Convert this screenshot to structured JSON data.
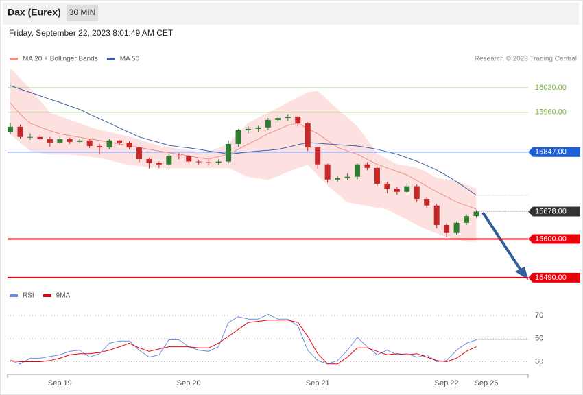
{
  "chart_data": {
    "type": "candlestick",
    "title": "Dax (Eurex)",
    "timeframe": "30 MIN",
    "subtitle": "Friday, September 22, 2023 8:01:49 AM CET",
    "credit": "Research © 2023 Trading Central",
    "categories": [
      null,
      null,
      null,
      null,
      null,
      "Sep 19",
      null,
      null,
      null,
      null,
      null,
      null,
      null,
      null,
      null,
      null,
      null,
      null,
      "Sep 20",
      null,
      null,
      null,
      null,
      null,
      null,
      null,
      null,
      null,
      null,
      null,
      null,
      "Sep 21",
      null,
      null,
      null,
      null,
      null,
      null,
      null,
      null,
      null,
      null,
      null,
      null,
      "Sep 22",
      null,
      null,
      null,
      "Sep 26",
      null,
      null,
      null,
      null
    ],
    "open": [
      15905,
      15919,
      15890,
      15890,
      15884,
      15874,
      15884,
      15876,
      15880,
      15864,
      15860,
      15880,
      15874,
      15860,
      15827,
      15816,
      15812,
      15837,
      15835,
      15820,
      15818,
      15816,
      15820,
      15870,
      15909,
      15913,
      15917,
      15938,
      15944,
      15948,
      15929,
      15860,
      15812,
      15769,
      15773,
      15777,
      15812,
      15802,
      15757,
      15743,
      15734,
      15750,
      15714,
      15695,
      15640,
      15617,
      15646,
      15665,
      null,
      null,
      null,
      null,
      null
    ],
    "high": [
      15930,
      15925,
      15900,
      15897,
      15890,
      15890,
      15888,
      15886,
      15884,
      15870,
      15884,
      15882,
      15878,
      15862,
      15830,
      15820,
      15842,
      15845,
      15838,
      15825,
      15822,
      15826,
      15880,
      15912,
      15920,
      15922,
      15944,
      15952,
      15955,
      15950,
      15932,
      15862,
      15814,
      15780,
      15786,
      15815,
      15818,
      15806,
      15762,
      15748,
      15758,
      15755,
      15718,
      15700,
      15645,
      15650,
      15670,
      15682,
      null,
      null,
      null,
      null,
      null
    ],
    "low": [
      15898,
      15885,
      15882,
      15878,
      15862,
      15870,
      15870,
      15872,
      15858,
      15840,
      15855,
      15866,
      15855,
      15818,
      15800,
      15802,
      15808,
      15826,
      15815,
      15812,
      15810,
      15812,
      15815,
      15862,
      15900,
      15905,
      15910,
      15930,
      15936,
      15920,
      15850,
      15800,
      15760,
      15762,
      15768,
      15770,
      15795,
      15750,
      15730,
      15725,
      15730,
      15705,
      15688,
      15630,
      15605,
      15612,
      15640,
      15660,
      null,
      null,
      null,
      null,
      null
    ],
    "close": [
      15919,
      15890,
      15890,
      15884,
      15874,
      15884,
      15876,
      15880,
      15864,
      15860,
      15880,
      15874,
      15860,
      15827,
      15816,
      15812,
      15837,
      15835,
      15820,
      15818,
      15816,
      15820,
      15870,
      15909,
      15913,
      15917,
      15938,
      15944,
      15948,
      15929,
      15860,
      15812,
      15769,
      15773,
      15777,
      15812,
      15802,
      15757,
      15743,
      15734,
      15750,
      15714,
      15695,
      15640,
      15617,
      15646,
      15665,
      15678,
      null,
      null,
      null,
      null,
      null
    ],
    "up_color": "#2e7d32",
    "down_color": "#c62828",
    "series": [
      {
        "name": "MA 20 + Bollinger Bands",
        "color": "#f28b82",
        "band_color": "#fde1e1",
        "values": [
          15987,
          15955,
          15929,
          15918,
          15908,
          15899,
          15894,
          15889,
          15884,
          15880,
          15875,
          15870,
          15865,
          15860,
          15855,
          15850,
          15845,
          15841,
          15836,
          15831,
          15827,
          15834,
          15841,
          15855,
          15870,
          15884,
          15899,
          15911,
          15923,
          15929,
          15914,
          15899,
          15880,
          15860,
          15850,
          15841,
          15826,
          15812,
          15802,
          15792,
          15782,
          15766,
          15750,
          15734,
          15720,
          15705,
          15695,
          15685,
          null,
          null,
          null,
          null,
          null
        ],
        "upper": [
          16085,
          16055,
          16026,
          15992,
          15958,
          15948,
          15938,
          15928,
          15918,
          15909,
          15903,
          15896,
          15890,
          15881,
          15873,
          15864,
          15860,
          15855,
          15851,
          15849,
          15847,
          15858,
          15870,
          15900,
          15929,
          15944,
          15958,
          15972,
          15987,
          16002,
          16016,
          16020,
          15994,
          15968,
          15944,
          15919,
          15880,
          15841,
          15826,
          15812,
          15807,
          15802,
          15788,
          15773,
          15768,
          15763,
          15753,
          15743,
          null,
          null,
          null,
          null,
          null
        ],
        "lower": [
          15899,
          15875,
          15851,
          15846,
          15841,
          15841,
          15841,
          15838,
          15835,
          15831,
          15825,
          15818,
          15812,
          15808,
          15805,
          15802,
          15802,
          15802,
          15802,
          15802,
          15802,
          15802,
          15802,
          15790,
          15777,
          15773,
          15769,
          15780,
          15792,
          15802,
          15812,
          15782,
          15753,
          15729,
          15705,
          15700,
          15695,
          15690,
          15685,
          15670,
          15656,
          15641,
          15627,
          15617,
          15607,
          15600,
          15593,
          15593,
          null,
          null,
          null,
          null,
          null
        ]
      },
      {
        "name": "MA 50",
        "color": "#3d5f9e",
        "values": [
          16036,
          16026,
          16017,
          16007,
          15997,
          15988,
          15978,
          15968,
          15955,
          15942,
          15929,
          15916,
          15903,
          15890,
          15882,
          15874,
          15866,
          15862,
          15859,
          15855,
          15850,
          15846,
          15841,
          15844,
          15847,
          15850,
          15852,
          15855,
          15861,
          15868,
          15874,
          15872,
          15870,
          15868,
          15866,
          15864,
          15860,
          15855,
          15848,
          15841,
          15831,
          15821,
          15809,
          15796,
          15780,
          15763,
          15744,
          15724,
          null,
          null,
          null,
          null,
          null
        ]
      }
    ],
    "levels": [
      {
        "value": 16030,
        "label": "16030.00",
        "color": "#7cb342",
        "box": false
      },
      {
        "value": 15960,
        "label": "15960.00",
        "color": "#7cb342",
        "box": false
      },
      {
        "value": 15847,
        "label": "15847.00",
        "color": "#1f5fd6",
        "box": true
      },
      {
        "value": 15678,
        "label": "15678.00",
        "color": "#333333",
        "box": true,
        "dotted": true
      },
      {
        "value": 15600,
        "label": "15600.00",
        "color": "#e8000b",
        "box": true
      },
      {
        "value": 15490,
        "label": "15490.00",
        "color": "#e8000b",
        "box": true
      }
    ],
    "ylim": [
      15480,
      16100
    ],
    "rsi": {
      "series": [
        {
          "name": "RSI",
          "color": "#6a8de0",
          "values": [
            31,
            28,
            33,
            33,
            34.5,
            36,
            39,
            40,
            34,
            37,
            46,
            48,
            48,
            40,
            34,
            36,
            49,
            49,
            43,
            40,
            39,
            43,
            64,
            69,
            67,
            67,
            71,
            67,
            67,
            61,
            40,
            31,
            28,
            31,
            40,
            51,
            43,
            36,
            40,
            36,
            37,
            34,
            36,
            30,
            31,
            40,
            46,
            49,
            null,
            null,
            null,
            null,
            null
          ]
        },
        {
          "name": "9MA",
          "color": "#e8000b",
          "values": [
            31,
            30,
            30,
            30,
            31,
            33,
            36,
            37,
            37,
            38,
            40,
            43,
            46,
            42,
            39,
            41,
            43,
            43,
            43,
            42,
            42,
            46,
            52,
            58,
            64,
            65,
            66,
            66,
            66,
            64,
            52,
            37,
            28,
            28,
            34,
            42,
            42,
            39,
            36,
            37,
            36,
            37,
            34,
            31,
            30,
            33,
            39,
            43,
            null,
            null,
            null,
            null,
            null
          ]
        }
      ],
      "ylim": [
        19,
        76
      ],
      "yticks": [
        30,
        50,
        70
      ]
    }
  }
}
